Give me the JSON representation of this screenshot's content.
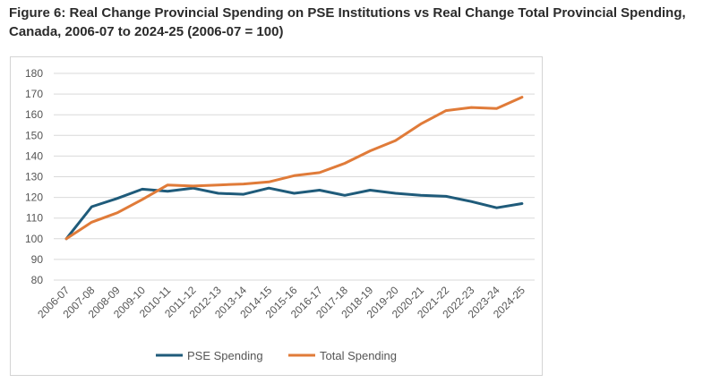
{
  "title": "Figure 6: Real Change Provincial Spending on PSE Institutions vs Real Change Total Provincial Spending, Canada, 2006-07 to 2024-25 (2006-07 = 100)",
  "chart_data": {
    "type": "line",
    "title": "Figure 6: Real Change Provincial Spending on PSE Institutions vs Real Change Total Provincial Spending, Canada, 2006-07 to 2024-25 (2006-07 = 100)",
    "xlabel": "",
    "ylabel": "",
    "ylim": [
      80,
      180
    ],
    "yticks": [
      80,
      90,
      100,
      110,
      120,
      130,
      140,
      150,
      160,
      170,
      180
    ],
    "grid": true,
    "legend_position": "bottom",
    "categories": [
      "2006-07",
      "2007-08",
      "2008-09",
      "2009-10",
      "2010-11",
      "2011-12",
      "2012-13",
      "2013-14",
      "2014-15",
      "2015-16",
      "2016-17",
      "2017-18",
      "2018-19",
      "2019-20",
      "2020-21",
      "2021-22",
      "2022-23",
      "2023-24",
      "2024-25"
    ],
    "series": [
      {
        "name": "PSE Spending",
        "color": "#1f5b7a",
        "values": [
          100,
          115.5,
          119.5,
          124,
          123,
          124.5,
          122,
          121.5,
          124.5,
          122,
          123.5,
          121,
          123.5,
          122,
          121,
          120.5,
          118,
          115,
          117
        ]
      },
      {
        "name": "Total Spending",
        "color": "#e07b39",
        "values": [
          100,
          108,
          112.5,
          119,
          126,
          125.5,
          126,
          126.5,
          127.5,
          130.5,
          132,
          136.5,
          142.5,
          147.5,
          155.5,
          162,
          163.5,
          163,
          168.5
        ]
      }
    ]
  }
}
